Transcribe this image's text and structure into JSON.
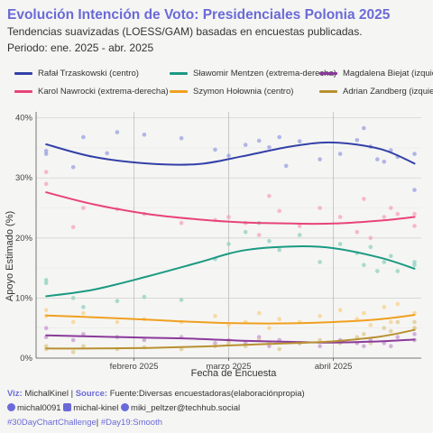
{
  "header": {
    "title": "Evolución Intención de Voto: Presidenciales Polonia 2025",
    "subtitle": "Tendencias suavizadas (LOESS/GAM) basadas en encuestas publicadas.",
    "period": "Periodo: ene. 2025 - abr. 2025"
  },
  "caption": {
    "viz_label": "Viz:",
    "viz_value": "MichalKinel",
    "sep": "|",
    "source_label": "Source:",
    "source_value": "Fuente:Diversas encuestadoras(elaboraciónpropia)",
    "github": "michal0091",
    "linkedin": "michal-kinel",
    "mastodon": "miki_peltzer@techhub.social",
    "tag1": "#30DayChartChallenge",
    "tag_sep": "|",
    "tag2": "#Day19:Smooth"
  },
  "chart_data": {
    "type": "line",
    "xlabel": "Fecha de Encuesta",
    "ylabel": "Apoyo Estimado (%)",
    "xlim": [
      "2025-01-03",
      "2025-04-27"
    ],
    "ylim": [
      0,
      41
    ],
    "x_ticks": [
      {
        "date": "2025-02-01",
        "label": "febrero 2025"
      },
      {
        "date": "2025-03-01",
        "label": "marzo 2025"
      },
      {
        "date": "2025-04-01",
        "label": "abril 2025"
      }
    ],
    "y_ticks": [
      {
        "value": 0,
        "label": "0%"
      },
      {
        "value": 10,
        "label": "10%"
      },
      {
        "value": 20,
        "label": "20%"
      },
      {
        "value": 30,
        "label": "30%"
      },
      {
        "value": 40,
        "label": "40%"
      }
    ],
    "grid": true,
    "legend_position": "top",
    "series": [
      {
        "name": "Rafał Trzaskowski (centro)",
        "color": "#3340a8",
        "point_color": "#9a9fe0",
        "x": [
          "2025-01-06",
          "2025-01-20",
          "2025-02-05",
          "2025-02-20",
          "2025-03-05",
          "2025-03-20",
          "2025-04-01",
          "2025-04-15",
          "2025-04-25"
        ],
        "y": [
          35.6,
          33.5,
          32.4,
          32.3,
          33.6,
          35.3,
          35.9,
          34.8,
          32.4
        ],
        "points": [
          [
            "2025-01-06",
            34.5
          ],
          [
            "2025-01-06",
            34.0
          ],
          [
            "2025-01-14",
            31.8
          ],
          [
            "2025-01-17",
            36.8
          ],
          [
            "2025-01-24",
            34.1
          ],
          [
            "2025-01-27",
            37.6
          ],
          [
            "2025-02-04",
            37.2
          ],
          [
            "2025-02-15",
            36.6
          ],
          [
            "2025-02-25",
            34.7
          ],
          [
            "2025-03-01",
            33.7
          ],
          [
            "2025-03-06",
            35.5
          ],
          [
            "2025-03-10",
            36.2
          ],
          [
            "2025-03-13",
            35.1
          ],
          [
            "2025-03-16",
            36.8
          ],
          [
            "2025-03-18",
            32.0
          ],
          [
            "2025-03-22",
            36.1
          ],
          [
            "2025-03-28",
            33.1
          ],
          [
            "2025-04-03",
            34.0
          ],
          [
            "2025-04-08",
            36.3
          ],
          [
            "2025-04-10",
            38.3
          ],
          [
            "2025-04-12",
            35.2
          ],
          [
            "2025-04-14",
            33.1
          ],
          [
            "2025-04-16",
            32.7
          ],
          [
            "2025-04-18",
            34.6
          ],
          [
            "2025-04-20",
            33.5
          ],
          [
            "2025-04-25",
            34.0
          ],
          [
            "2025-04-25",
            28.0
          ]
        ]
      },
      {
        "name": "Karol Nawrocki (extrema-derecha)",
        "color": "#e8437a",
        "point_color": "#f4a3c0",
        "x": [
          "2025-01-06",
          "2025-01-20",
          "2025-02-05",
          "2025-02-20",
          "2025-03-05",
          "2025-03-20",
          "2025-04-01",
          "2025-04-15",
          "2025-04-25"
        ],
        "y": [
          27.6,
          25.6,
          24.0,
          23.1,
          22.6,
          22.4,
          22.4,
          22.9,
          23.5
        ],
        "points": [
          [
            "2025-01-06",
            31.0
          ],
          [
            "2025-01-06",
            29.0
          ],
          [
            "2025-01-14",
            21.8
          ],
          [
            "2025-01-17",
            25.0
          ],
          [
            "2025-01-27",
            24.8
          ],
          [
            "2025-02-04",
            24.0
          ],
          [
            "2025-02-15",
            22.5
          ],
          [
            "2025-02-25",
            23.0
          ],
          [
            "2025-03-01",
            23.5
          ],
          [
            "2025-03-06",
            22.5
          ],
          [
            "2025-03-10",
            20.5
          ],
          [
            "2025-03-13",
            27.0
          ],
          [
            "2025-03-16",
            24.5
          ],
          [
            "2025-03-22",
            22.0
          ],
          [
            "2025-03-28",
            25.0
          ],
          [
            "2025-04-03",
            23.5
          ],
          [
            "2025-04-08",
            21.0
          ],
          [
            "2025-04-10",
            26.5
          ],
          [
            "2025-04-12",
            20.0
          ],
          [
            "2025-04-16",
            23.5
          ],
          [
            "2025-04-18",
            25.0
          ],
          [
            "2025-04-20",
            24.0
          ],
          [
            "2025-04-25",
            24.0
          ],
          [
            "2025-04-25",
            22.0
          ]
        ]
      },
      {
        "name": "Sławomir Mentzen (extrema-derecha)",
        "color": "#1a9a82",
        "point_color": "#8fd0c0",
        "x": [
          "2025-01-06",
          "2025-01-20",
          "2025-02-05",
          "2025-02-20",
          "2025-03-05",
          "2025-03-20",
          "2025-04-01",
          "2025-04-15",
          "2025-04-25"
        ],
        "y": [
          10.3,
          11.4,
          13.6,
          15.9,
          17.9,
          18.6,
          18.3,
          16.7,
          14.9
        ],
        "points": [
          [
            "2025-01-06",
            13.0
          ],
          [
            "2025-01-06",
            12.5
          ],
          [
            "2025-01-14",
            10.0
          ],
          [
            "2025-01-17",
            8.5
          ],
          [
            "2025-01-27",
            9.5
          ],
          [
            "2025-02-04",
            10.2
          ],
          [
            "2025-02-15",
            9.7
          ],
          [
            "2025-02-25",
            16.5
          ],
          [
            "2025-03-01",
            19.0
          ],
          [
            "2025-03-06",
            21.0
          ],
          [
            "2025-03-10",
            22.5
          ],
          [
            "2025-03-13",
            19.5
          ],
          [
            "2025-03-16",
            18.0
          ],
          [
            "2025-03-22",
            20.5
          ],
          [
            "2025-03-28",
            16.0
          ],
          [
            "2025-04-03",
            19.0
          ],
          [
            "2025-04-08",
            17.5
          ],
          [
            "2025-04-10",
            15.5
          ],
          [
            "2025-04-12",
            18.5
          ],
          [
            "2025-04-14",
            14.5
          ],
          [
            "2025-04-16",
            16.0
          ],
          [
            "2025-04-18",
            17.0
          ],
          [
            "2025-04-20",
            14.5
          ],
          [
            "2025-04-25",
            16.0
          ],
          [
            "2025-04-25",
            15.5
          ]
        ]
      },
      {
        "name": "Szymon Hołownia (centro)",
        "color": "#f0a020",
        "point_color": "#f8d08c",
        "x": [
          "2025-01-06",
          "2025-01-20",
          "2025-02-05",
          "2025-02-20",
          "2025-03-05",
          "2025-03-20",
          "2025-04-01",
          "2025-04-15",
          "2025-04-25"
        ],
        "y": [
          7.1,
          6.8,
          6.4,
          6.0,
          5.8,
          5.8,
          6.0,
          6.5,
          7.2
        ],
        "points": [
          [
            "2025-01-06",
            8.0
          ],
          [
            "2025-01-06",
            7.0
          ],
          [
            "2025-01-14",
            6.0
          ],
          [
            "2025-01-17",
            7.5
          ],
          [
            "2025-01-27",
            6.0
          ],
          [
            "2025-02-04",
            6.5
          ],
          [
            "2025-02-15",
            6.0
          ],
          [
            "2025-02-25",
            7.0
          ],
          [
            "2025-03-01",
            5.5
          ],
          [
            "2025-03-06",
            6.0
          ],
          [
            "2025-03-10",
            7.5
          ],
          [
            "2025-03-13",
            5.0
          ],
          [
            "2025-03-16",
            6.5
          ],
          [
            "2025-03-22",
            6.0
          ],
          [
            "2025-03-28",
            7.0
          ],
          [
            "2025-04-03",
            8.0
          ],
          [
            "2025-04-08",
            6.5
          ],
          [
            "2025-04-10",
            7.5
          ],
          [
            "2025-04-12",
            5.5
          ],
          [
            "2025-04-16",
            8.5
          ],
          [
            "2025-04-18",
            6.0
          ],
          [
            "2025-04-20",
            9.0
          ],
          [
            "2025-04-25",
            7.5
          ],
          [
            "2025-04-25",
            5.0
          ]
        ]
      },
      {
        "name": "Magdalena Biejat (izquierda)",
        "color": "#8a3a9a",
        "point_color": "#c69ad0",
        "x": [
          "2025-01-06",
          "2025-01-20",
          "2025-02-05",
          "2025-02-20",
          "2025-03-05",
          "2025-03-20",
          "2025-04-01",
          "2025-04-15",
          "2025-04-25"
        ],
        "y": [
          3.8,
          3.6,
          3.4,
          3.2,
          2.9,
          2.7,
          2.6,
          2.8,
          3.1
        ],
        "points": [
          [
            "2025-01-06",
            5.0
          ],
          [
            "2025-01-06",
            3.5
          ],
          [
            "2025-01-14",
            3.0
          ],
          [
            "2025-01-17",
            4.0
          ],
          [
            "2025-01-27",
            3.5
          ],
          [
            "2025-02-04",
            3.0
          ],
          [
            "2025-02-15",
            3.5
          ],
          [
            "2025-02-25",
            2.5
          ],
          [
            "2025-03-01",
            3.0
          ],
          [
            "2025-03-06",
            2.5
          ],
          [
            "2025-03-10",
            3.5
          ],
          [
            "2025-03-13",
            2.0
          ],
          [
            "2025-03-16",
            3.0
          ],
          [
            "2025-03-22",
            2.5
          ],
          [
            "2025-03-28",
            2.0
          ],
          [
            "2025-04-03",
            3.0
          ],
          [
            "2025-04-08",
            2.5
          ],
          [
            "2025-04-10",
            2.0
          ],
          [
            "2025-04-12",
            3.0
          ],
          [
            "2025-04-16",
            2.5
          ],
          [
            "2025-04-18",
            2.0
          ],
          [
            "2025-04-20",
            3.5
          ],
          [
            "2025-04-25",
            3.0
          ],
          [
            "2025-04-25",
            4.0
          ]
        ]
      },
      {
        "name": "Adrian Zandberg (izquierda)",
        "color": "#b89030",
        "point_color": "#dcc890",
        "x": [
          "2025-01-06",
          "2025-01-20",
          "2025-02-05",
          "2025-02-20",
          "2025-03-05",
          "2025-03-20",
          "2025-04-01",
          "2025-04-15",
          "2025-04-25"
        ],
        "y": [
          1.6,
          1.6,
          1.7,
          1.9,
          2.2,
          2.5,
          2.8,
          3.6,
          4.7
        ],
        "points": [
          [
            "2025-01-06",
            2.0
          ],
          [
            "2025-01-06",
            1.5
          ],
          [
            "2025-01-14",
            1.0
          ],
          [
            "2025-01-17",
            2.0
          ],
          [
            "2025-01-27",
            1.5
          ],
          [
            "2025-02-04",
            1.8
          ],
          [
            "2025-02-15",
            1.5
          ],
          [
            "2025-02-25",
            2.0
          ],
          [
            "2025-03-01",
            2.5
          ],
          [
            "2025-03-06",
            2.0
          ],
          [
            "2025-03-10",
            3.0
          ],
          [
            "2025-03-13",
            2.5
          ],
          [
            "2025-03-16",
            1.5
          ],
          [
            "2025-03-22",
            2.5
          ],
          [
            "2025-03-28",
            3.0
          ],
          [
            "2025-04-03",
            2.5
          ],
          [
            "2025-04-08",
            3.5
          ],
          [
            "2025-04-10",
            4.0
          ],
          [
            "2025-04-12",
            2.5
          ],
          [
            "2025-04-16",
            5.0
          ],
          [
            "2025-04-18",
            4.5
          ],
          [
            "2025-04-20",
            6.0
          ],
          [
            "2025-04-25",
            6.0
          ],
          [
            "2025-04-25",
            5.0
          ]
        ]
      }
    ]
  }
}
